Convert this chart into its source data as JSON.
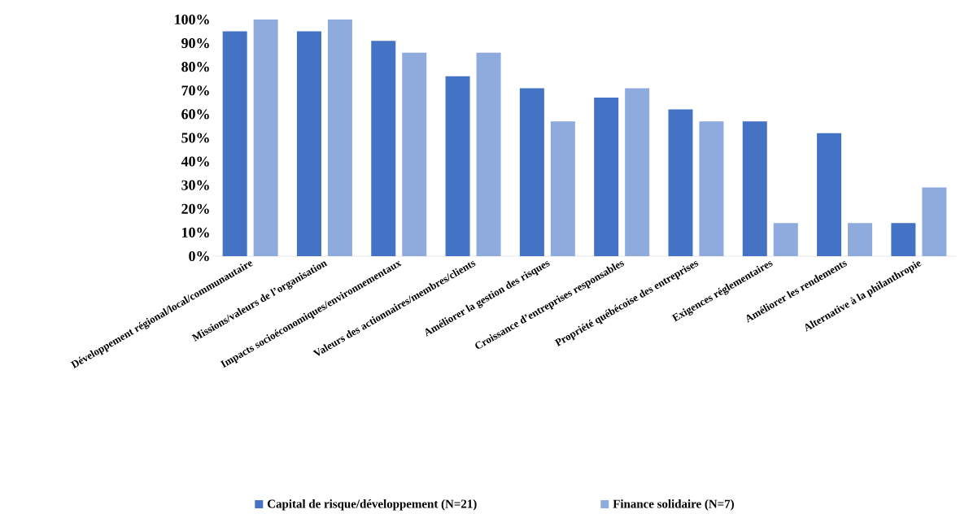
{
  "chart_data": {
    "type": "bar",
    "categories": [
      "Développement régional/local/communautaire",
      "Missions/valeurs de l’organisation",
      "Impacts socioéconomiques/environnementaux",
      "Valeurs des actionnaires/membres/clients",
      "Améliorer la gestion des risques",
      "Croissance d’entreprises responsables",
      "Propriété québécoise des entreprises",
      "Exigences réglementaires",
      "Améliorer les rendements",
      "Alternative à la philanthropie"
    ],
    "series": [
      {
        "name": "Capital de risque/développement (N=21)",
        "color": "#4472c4",
        "values": [
          95,
          95,
          91,
          76,
          71,
          67,
          62,
          57,
          52,
          14
        ]
      },
      {
        "name": "Finance solidaire (N=7)",
        "color": "#8faadc",
        "values": [
          100,
          100,
          86,
          86,
          57,
          71,
          57,
          14,
          14,
          29
        ]
      }
    ],
    "ylim": [
      0,
      100
    ],
    "yticks": [
      {
        "value": 0,
        "label": "0%"
      },
      {
        "value": 10,
        "label": "10%"
      },
      {
        "value": 20,
        "label": "20%"
      },
      {
        "value": 30,
        "label": "30%"
      },
      {
        "value": 40,
        "label": "40%"
      },
      {
        "value": 50,
        "label": "50%"
      },
      {
        "value": 60,
        "label": "60%"
      },
      {
        "value": 70,
        "label": "70%"
      },
      {
        "value": 80,
        "label": "80%"
      },
      {
        "value": 90,
        "label": "90%"
      },
      {
        "value": 100,
        "label": "100%"
      }
    ],
    "grid": false,
    "legend": "bottom"
  }
}
